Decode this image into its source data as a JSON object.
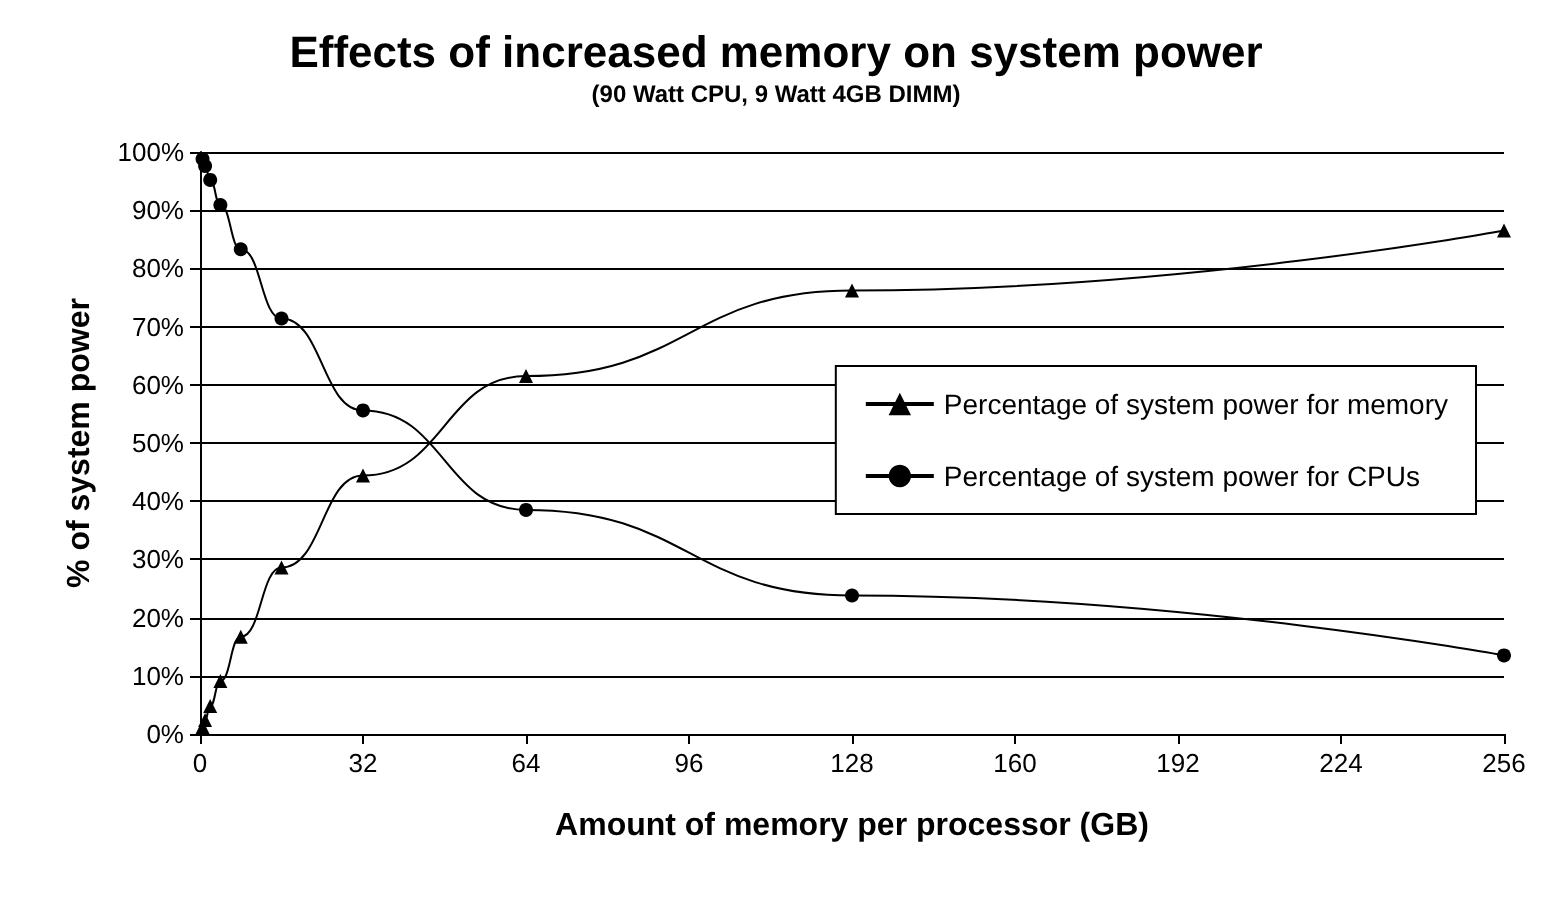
{
  "chart_data": {
    "type": "line",
    "title": "Effects of increased memory on system power",
    "subtitle": "(90 Watt CPU, 9 Watt 4GB DIMM)",
    "xlabel": "Amount of memory per processor (GB)",
    "ylabel": "% of system power",
    "x": [
      0.5,
      1,
      2,
      4,
      8,
      16,
      32,
      64,
      128,
      256
    ],
    "series": [
      {
        "name": "Percentage of system power for memory",
        "color": "#000000",
        "marker": "triangle",
        "values": [
          1.2,
          2.4,
          4.8,
          9.1,
          16.7,
          28.6,
          44.4,
          61.5,
          76.2,
          86.5
        ]
      },
      {
        "name": "Percentage of system power for CPUs",
        "color": "#000000",
        "marker": "circle",
        "values": [
          98.8,
          97.6,
          95.2,
          90.9,
          83.3,
          71.4,
          55.6,
          38.5,
          23.8,
          13.5
        ]
      }
    ],
    "xlim": [
      0,
      256
    ],
    "xticks": [
      0,
      32,
      64,
      96,
      128,
      160,
      192,
      224,
      256
    ],
    "ylim": [
      0,
      100
    ],
    "yticks": [
      {
        "value": 0,
        "label": "0%"
      },
      {
        "value": 10,
        "label": "10%"
      },
      {
        "value": 20,
        "label": "20%"
      },
      {
        "value": 30,
        "label": "30%"
      },
      {
        "value": 40,
        "label": "40%"
      },
      {
        "value": 50,
        "label": "50%"
      },
      {
        "value": 60,
        "label": "60%"
      },
      {
        "value": 70,
        "label": "70%"
      },
      {
        "value": 80,
        "label": "80%"
      },
      {
        "value": 90,
        "label": "90%"
      },
      {
        "value": 100,
        "label": "100%"
      }
    ],
    "grid": "y",
    "legend": "right",
    "line_style": "solid"
  }
}
